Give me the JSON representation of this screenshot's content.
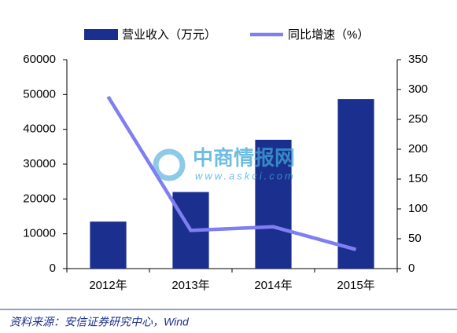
{
  "chart_data": {
    "type": "bar",
    "categories": [
      "2012年",
      "2013年",
      "2014年",
      "2015年"
    ],
    "series": [
      {
        "name": "营业收入（万元）",
        "color": "#1b2f8e",
        "values": [
          13500,
          22000,
          37000,
          48700
        ]
      },
      {
        "name": "同比增速（%）",
        "color": "#7f7ff2",
        "axis": "y2",
        "type": "line",
        "values": [
          288,
          64,
          70,
          32
        ]
      }
    ],
    "ylim": [
      0,
      60000
    ],
    "yticks": [
      0,
      10000,
      20000,
      30000,
      40000,
      50000,
      60000
    ],
    "y2lim": [
      0,
      350
    ],
    "y2ticks": [
      0,
      50,
      100,
      150,
      200,
      250,
      300,
      350
    ],
    "legend": "top",
    "watermark": [
      "中商情报网",
      "www.askci.com"
    ],
    "source": "资料来源：安信证券研究中心，Wind"
  }
}
